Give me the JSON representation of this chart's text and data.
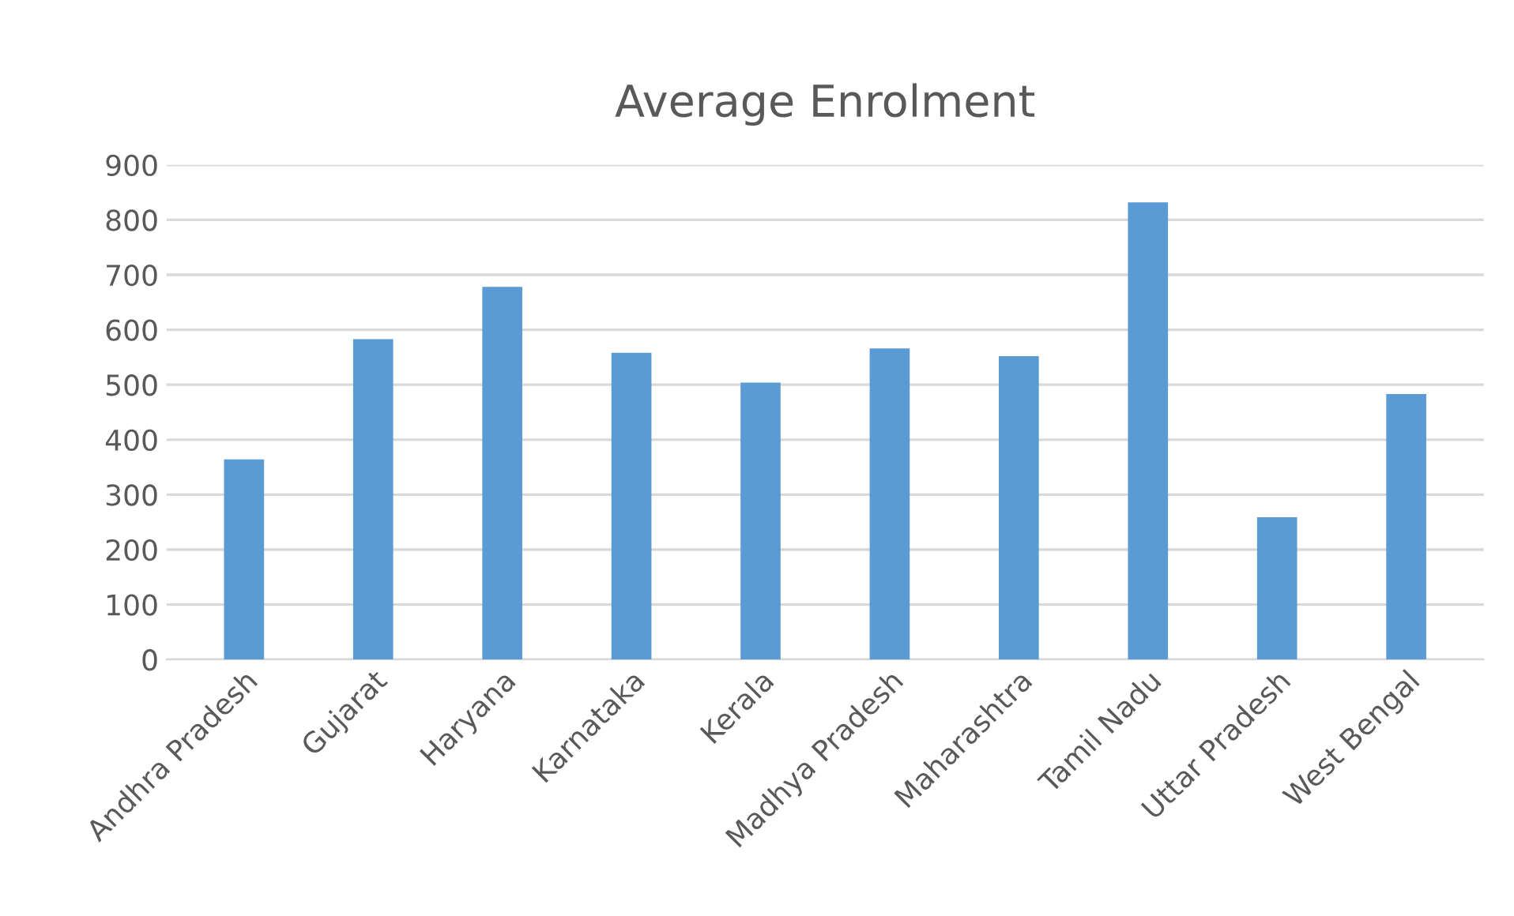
{
  "chart_data": {
    "type": "bar",
    "title": "Average Enrolment",
    "categories": [
      "Andhra Pradesh",
      "Gujarat",
      "Haryana",
      "Karnataka",
      "Kerala",
      "Madhya Pradesh",
      "Maharashtra",
      "Tamil Nadu",
      "Uttar Pradesh",
      "West Bengal"
    ],
    "values": [
      364,
      583,
      678,
      558,
      504,
      566,
      552,
      832,
      259,
      483
    ],
    "color": "#5b9bd5",
    "ylim": [
      0,
      900
    ],
    "yticks": [
      0,
      100,
      200,
      300,
      400,
      500,
      600,
      700,
      800,
      900
    ],
    "grid": "y"
  }
}
